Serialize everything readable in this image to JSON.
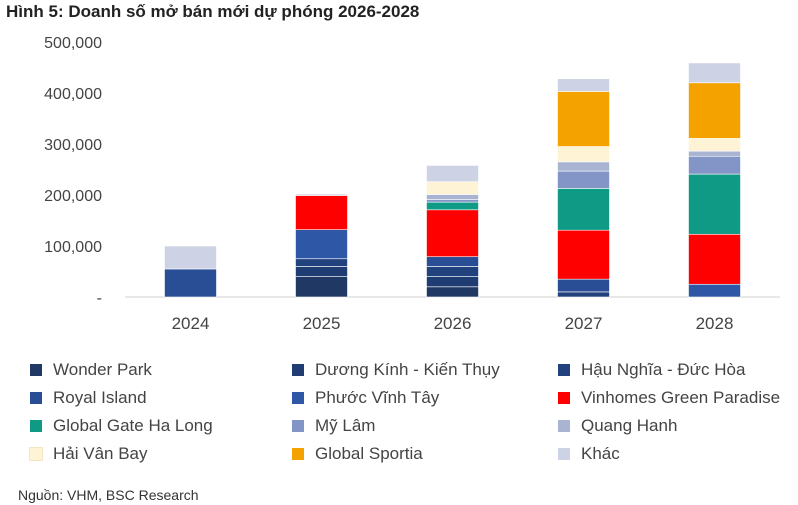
{
  "title": "Hình 5:  Doanh số mở bán mới dự phóng 2026-2028",
  "source": "Nguồn: VHM, BSC Research",
  "chart_data": {
    "type": "bar",
    "stacked": true,
    "categories": [
      "2024",
      "2025",
      "2026",
      "2027",
      "2028"
    ],
    "ylim": [
      0,
      500000
    ],
    "yticks": [
      0,
      100000,
      200000,
      300000,
      400000,
      500000
    ],
    "ytick_labels": [
      "-",
      "100,000",
      "200,000",
      "300,000",
      "400,000",
      "500,000"
    ],
    "grid": false,
    "legend_position": "bottom",
    "series": [
      {
        "name": "Wonder Park",
        "color": "#1F3864",
        "values": [
          0,
          40000,
          20000,
          0,
          0
        ]
      },
      {
        "name": "Dương Kính - Kiến Thụy",
        "color": "#203D73",
        "values": [
          0,
          20000,
          20000,
          0,
          0
        ]
      },
      {
        "name": "Hậu Nghĩa - Đức Hòa",
        "color": "#22427E",
        "values": [
          0,
          15000,
          20000,
          10000,
          0
        ]
      },
      {
        "name": "Royal Island",
        "color": "#2A4E96",
        "values": [
          55000,
          0,
          19000,
          25000,
          0
        ]
      },
      {
        "name": "Phước Vĩnh Tây",
        "color": "#2E57A6",
        "values": [
          0,
          57000,
          0,
          0,
          25000
        ]
      },
      {
        "name": "Vinhomes Green Paradise",
        "color": "#FF0000",
        "values": [
          0,
          67000,
          92000,
          96000,
          98000
        ]
      },
      {
        "name": "Global Gate Ha Long",
        "color": "#0E9A84",
        "values": [
          0,
          0,
          15000,
          82000,
          118000
        ]
      },
      {
        "name": "Mỹ Lâm",
        "color": "#8395C7",
        "values": [
          0,
          0,
          5000,
          34000,
          35000
        ]
      },
      {
        "name": "Quang Hanh",
        "color": "#A9B3D2",
        "values": [
          0,
          0,
          10000,
          18000,
          10000
        ]
      },
      {
        "name": "Hải Vân Bay",
        "color": "#FFF3D6",
        "values": [
          0,
          0,
          25000,
          30000,
          25000
        ]
      },
      {
        "name": "Global Sportia",
        "color": "#F4A200",
        "values": [
          0,
          0,
          0,
          108000,
          109000
        ]
      },
      {
        "name": "Khác",
        "color": "#CDD3E4",
        "values": [
          45000,
          3000,
          32000,
          25000,
          39000
        ]
      }
    ]
  }
}
